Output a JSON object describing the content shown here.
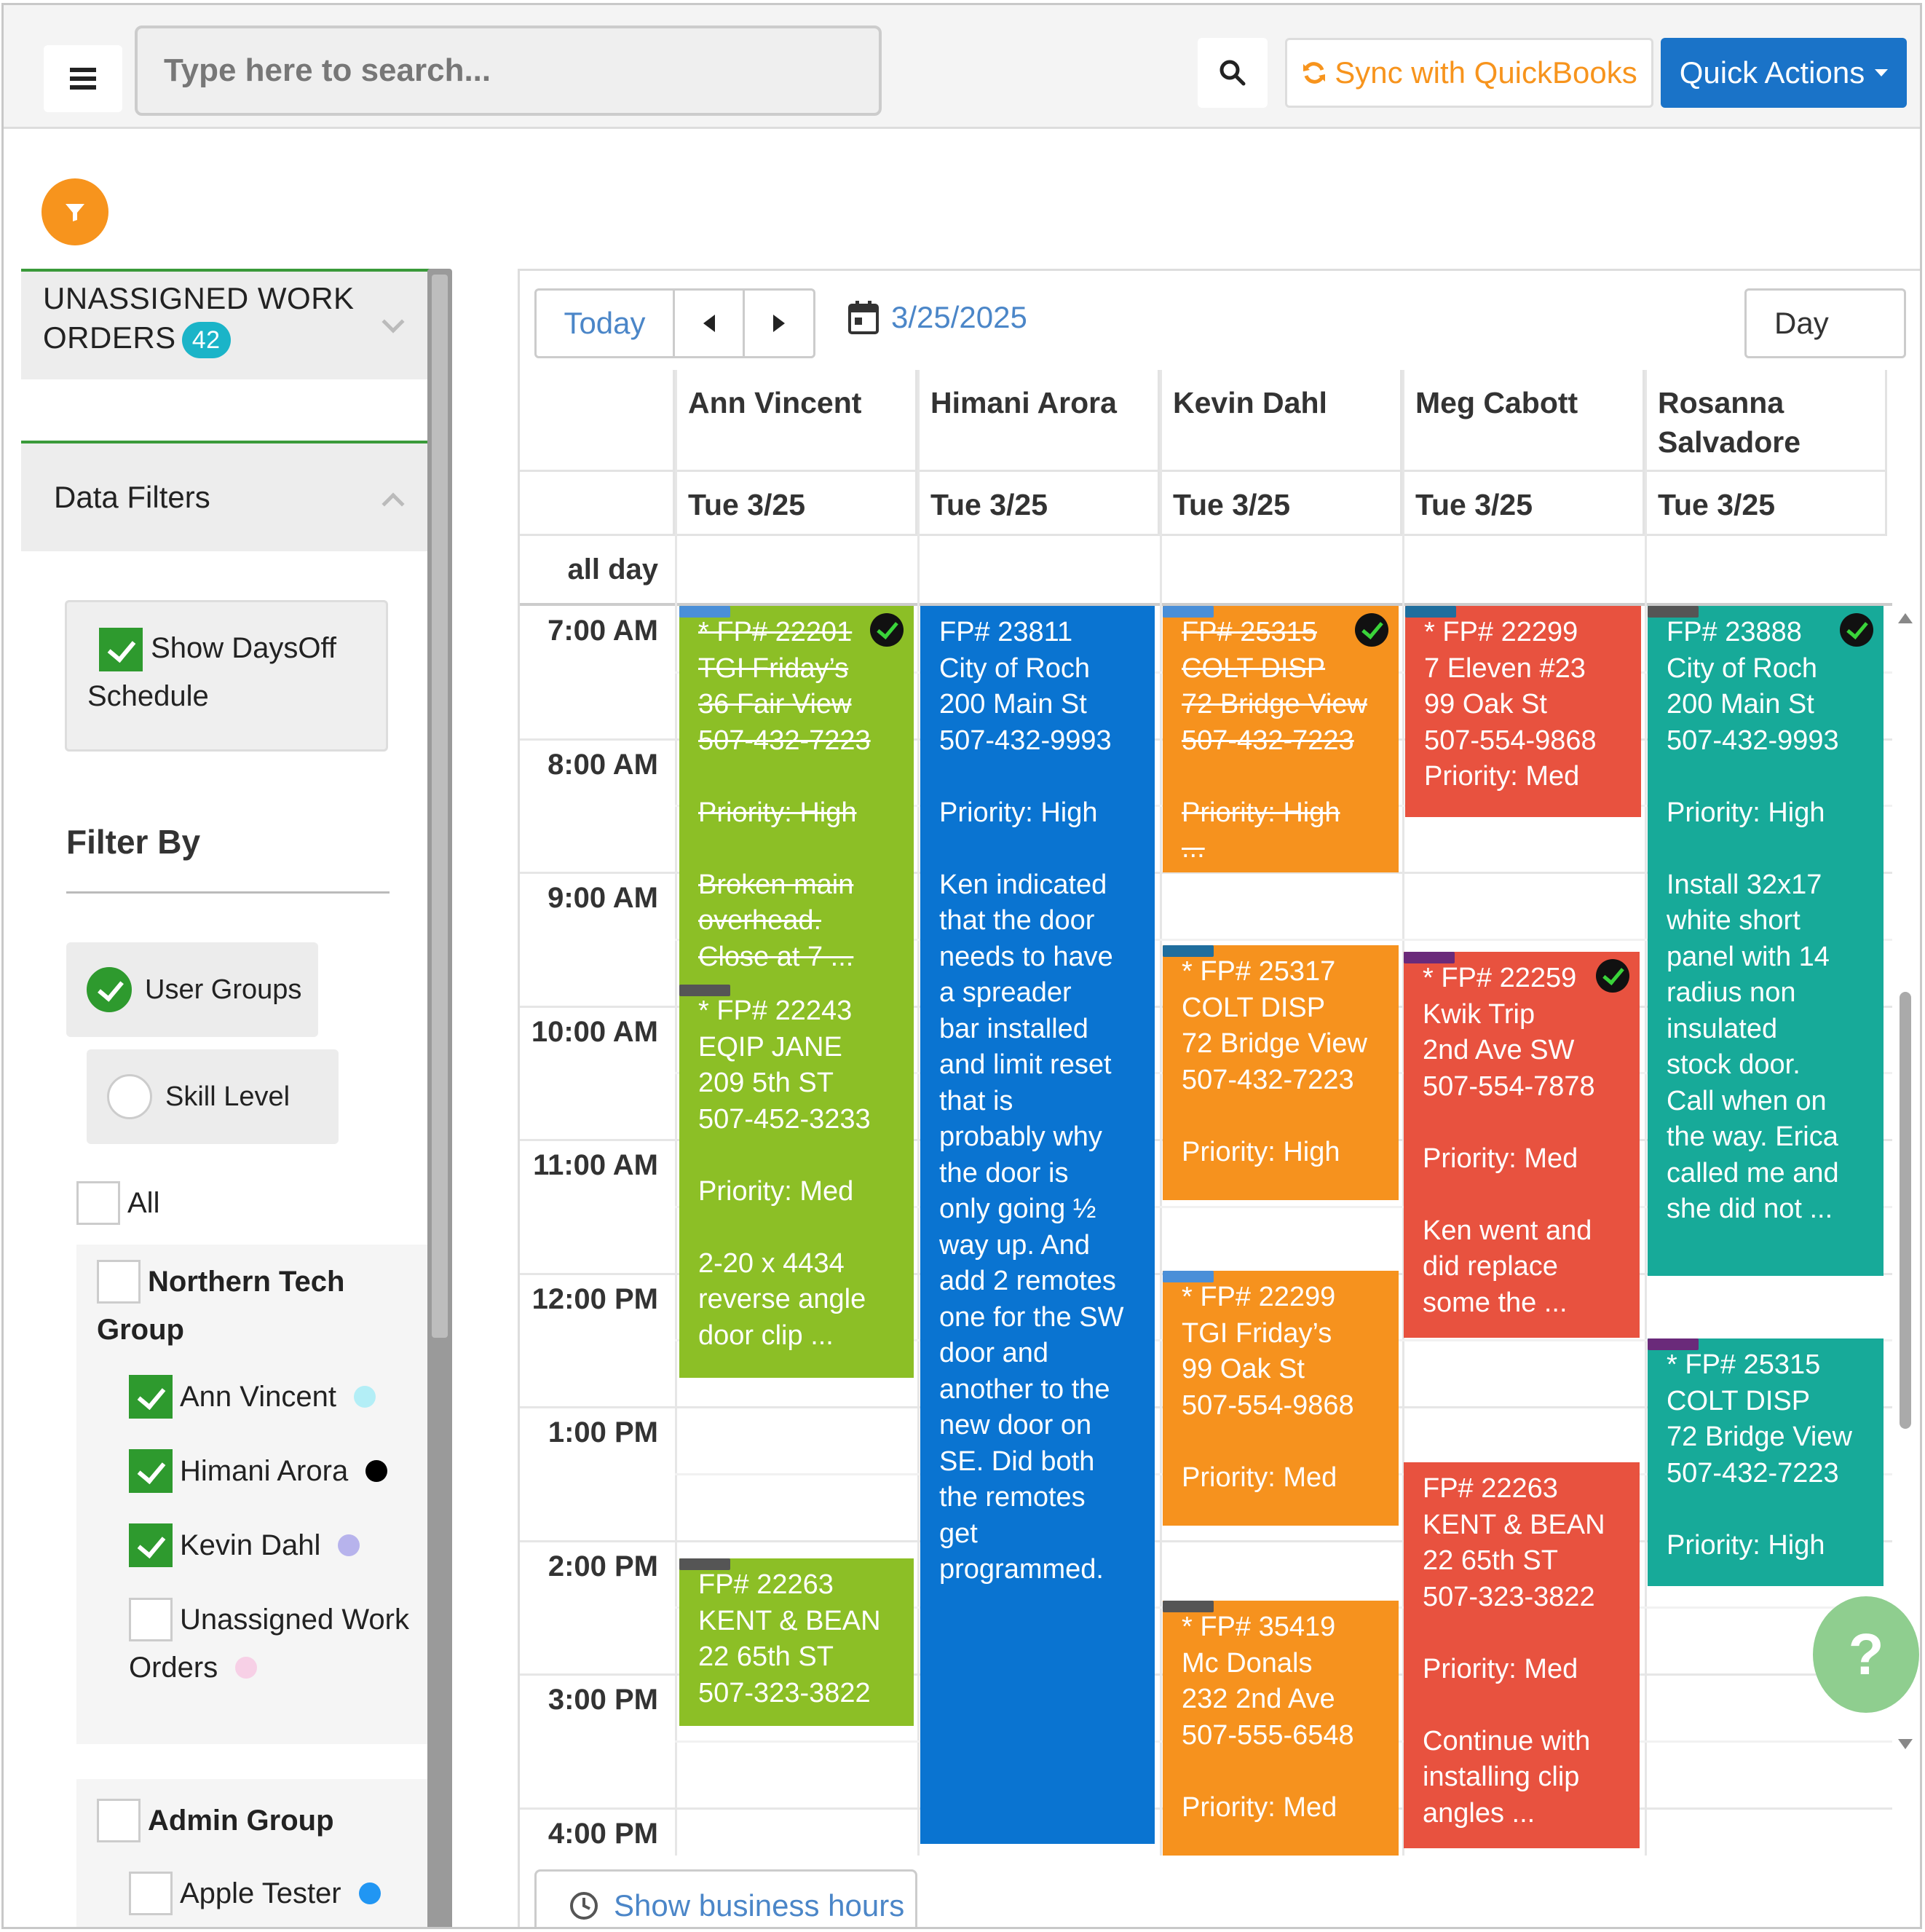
{
  "topbar": {
    "search_placeholder": "Type here to search...",
    "sync_label": "Sync with QuickBooks",
    "quick_actions_label": "Quick Actions",
    "sync_color": "#f7941d",
    "quick_color": "#1a73c8"
  },
  "sidebar": {
    "unassigned_line1": "UNASSIGNED WORK",
    "unassigned_line2": "ORDERS",
    "unassigned_count": "42",
    "data_filters": "Data Filters",
    "show_daysoff_line1": "Show DaysOff",
    "show_daysoff_line2": "Schedule",
    "filter_by": "Filter By",
    "user_groups": "User Groups",
    "skill_level": "Skill Level",
    "all": "All",
    "northern_group_line1": "Northern Tech",
    "northern_group_line2": "Group",
    "northern_members": [
      {
        "name": "Ann Vincent",
        "checked": true,
        "color": "#b3eef6"
      },
      {
        "name": "Himani Arora",
        "checked": true,
        "color": "#000000"
      },
      {
        "name": "Kevin Dahl",
        "checked": true,
        "color": "#b7b3ec"
      },
      {
        "name_line1": "Unassigned Work",
        "name_line2": "Orders",
        "checked": false,
        "color": "#f7d0e6"
      }
    ],
    "admin_group": "Admin Group",
    "admin_members": [
      {
        "name": "Apple Tester",
        "checked": false,
        "color": "#2196f3"
      }
    ]
  },
  "calendar": {
    "today": "Today",
    "date": "3/25/2025",
    "view": "Day",
    "all_day": "all day",
    "show_business_hours": "Show business hours",
    "technicians": [
      {
        "name_line1": "Ann Vincent",
        "name_line2": "",
        "date": "Tue 3/25"
      },
      {
        "name_line1": "Himani Arora",
        "name_line2": "",
        "date": "Tue 3/25"
      },
      {
        "name_line1": "Kevin Dahl",
        "name_line2": "",
        "date": "Tue 3/25"
      },
      {
        "name_line1": "Meg Cabott",
        "name_line2": "",
        "date": "Tue 3/25"
      },
      {
        "name_line1": "Rosanna",
        "name_line2": "Salvadore",
        "date": "Tue 3/25"
      }
    ],
    "times": [
      "7:00 AM",
      "8:00 AM",
      "9:00 AM",
      "10:00 AM",
      "11:00 AM",
      "12:00 PM",
      "1:00 PM",
      "2:00 PM",
      "3:00 PM",
      "4:00 PM"
    ],
    "events": [
      {
        "col": 0,
        "color": "green",
        "tag": "#4a8fd8",
        "done": true,
        "checked": true,
        "lines": [
          "* FP# 22201",
          "TGI Friday’s",
          "36 Fair View",
          "507-432-7223",
          "",
          "Priority: High",
          "",
          "Broken main",
          "overhead.",
          "Close at 7     ..."
        ]
      },
      {
        "col": 0,
        "color": "green",
        "tag": "#555555",
        "done": false,
        "checked": false,
        "lines": [
          "* FP# 22243",
          "EQIP JANE",
          "209 5th ST",
          "507-452-3233",
          "",
          "Priority: Med",
          "",
          "2-20 x 4434",
          "reverse angle",
          "door clip      ..."
        ]
      },
      {
        "col": 0,
        "color": "green",
        "tag": "#555555",
        "done": false,
        "checked": false,
        "lines": [
          "FP# 22263",
          "KENT & BEAN",
          "22 65th ST",
          "507-323-3822"
        ]
      },
      {
        "col": 1,
        "color": "blue",
        "tag": "",
        "done": false,
        "checked": false,
        "lines": [
          "FP# 23811",
          "City of Roch",
          "200 Main St",
          "507-432-9993",
          "",
          "Priority: High",
          "",
          "Ken indicated",
          "that the door",
          "needs to have",
          "a spreader",
          "bar installed",
          "and limit reset",
          "that is",
          "probably why",
          "the door is",
          "only going ½",
          "way up.  And",
          "add 2 remotes",
          "one for the SW",
          "door and",
          "another to the",
          "new door on",
          "SE.  Did both",
          "the remotes",
          "get",
          "programmed."
        ]
      },
      {
        "col": 2,
        "color": "orange",
        "tag": "#4a8fd8",
        "done": true,
        "checked": true,
        "lines": [
          "FP# 25315",
          "COLT DISP",
          "72 Bridge View",
          "507-432-7223",
          "",
          "Priority: High",
          "..."
        ]
      },
      {
        "col": 2,
        "color": "orange",
        "tag": "#1f6e9e",
        "done": false,
        "checked": false,
        "lines": [
          "* FP# 25317",
          "COLT DISP",
          "72 Bridge View",
          "507-432-7223",
          "",
          "Priority: High"
        ]
      },
      {
        "col": 2,
        "color": "orange",
        "tag": "#4a8fd8",
        "done": false,
        "checked": false,
        "lines": [
          "* FP# 22299",
          "TGI Friday’s",
          "99 Oak St",
          "507-554-9868",
          "",
          "Priority: Med"
        ]
      },
      {
        "col": 2,
        "color": "orange",
        "tag": "#555555",
        "done": false,
        "checked": false,
        "lines": [
          "* FP# 35419",
          "Mc Donals",
          "232 2nd Ave",
          "507-555-6548",
          "",
          "Priority: Med"
        ]
      },
      {
        "col": 3,
        "color": "red",
        "tag": "#1f6e9e",
        "done": false,
        "checked": false,
        "lines": [
          "* FP# 22299",
          "7 Eleven #23",
          "99 Oak St",
          "507-554-9868",
          "Priority: Med"
        ]
      },
      {
        "col": 3,
        "color": "red",
        "tag": "#6a2a7a",
        "done": false,
        "checked": true,
        "lines": [
          "* FP# 22259",
          "Kwik Trip",
          "2nd Ave SW",
          "507-554-7878",
          "",
          "Priority: Med",
          "",
          "Ken went and",
          "did replace",
          "some the        ..."
        ]
      },
      {
        "col": 3,
        "color": "red",
        "tag": "",
        "done": false,
        "checked": false,
        "lines": [
          "FP# 22263",
          "KENT & BEAN",
          "22 65th ST",
          "507-323-3822",
          "",
          "Priority: Med",
          "",
          "Continue with",
          "installing clip",
          "angles          ..."
        ]
      },
      {
        "col": 4,
        "color": "teal",
        "tag": "#555555",
        "done": false,
        "checked": true,
        "lines": [
          "FP# 23888",
          "City of Roch",
          "200 Main St",
          "507-432-9993",
          "",
          "Priority: High",
          "",
          "Install 32x17",
          "white short",
          "panel with 14",
          "radius non",
          "insulated",
          "stock door.",
          "Call when on",
          "the way. Erica",
          "called me and",
          "she did not ..."
        ]
      },
      {
        "col": 4,
        "color": "teal",
        "tag": "#6a2a7a",
        "done": false,
        "checked": false,
        "lines": [
          "* FP# 25315",
          "COLT DISP",
          "72 Bridge View",
          "507-432-7223",
          "",
          "Priority: High"
        ]
      }
    ],
    "help_label": "?"
  }
}
